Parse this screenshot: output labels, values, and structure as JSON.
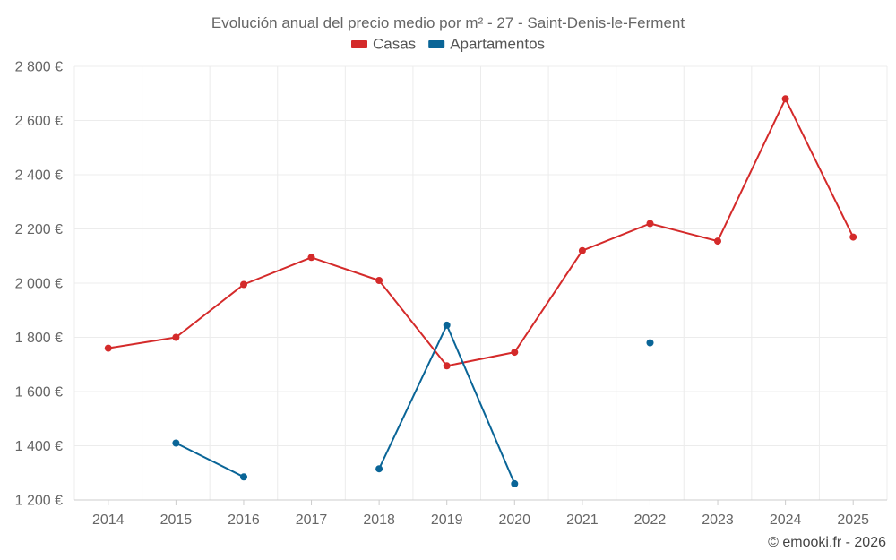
{
  "chart_data": {
    "type": "line",
    "title": "Evolución anual del precio medio por m² - 27 - Saint-Denis-le-Ferment",
    "categories": [
      "2014",
      "2015",
      "2016",
      "2017",
      "2018",
      "2019",
      "2020",
      "2021",
      "2022",
      "2023",
      "2024",
      "2025"
    ],
    "series": [
      {
        "name": "Casas",
        "color": "#d42a2a",
        "values": [
          1760,
          1800,
          1995,
          2095,
          2010,
          1695,
          1745,
          2120,
          2220,
          2155,
          2680,
          2170
        ]
      },
      {
        "name": "Apartamentos",
        "color": "#0a6597",
        "values": [
          null,
          1410,
          1285,
          null,
          1315,
          1845,
          1260,
          null,
          1780,
          null,
          null,
          null
        ]
      }
    ],
    "ylim": [
      1200,
      2800
    ],
    "yticks": [
      1200,
      1400,
      1600,
      1800,
      2000,
      2200,
      2400,
      2600,
      2800
    ],
    "ytick_labels": [
      "1 200 €",
      "1 400 €",
      "1 600 €",
      "1 800 €",
      "2 000 €",
      "2 200 €",
      "2 400 €",
      "2 600 €",
      "2 800 €"
    ],
    "legend_position": "top-center",
    "grid": true,
    "xlabel": "",
    "ylabel": ""
  },
  "credit": "© emooki.fr - 2026"
}
